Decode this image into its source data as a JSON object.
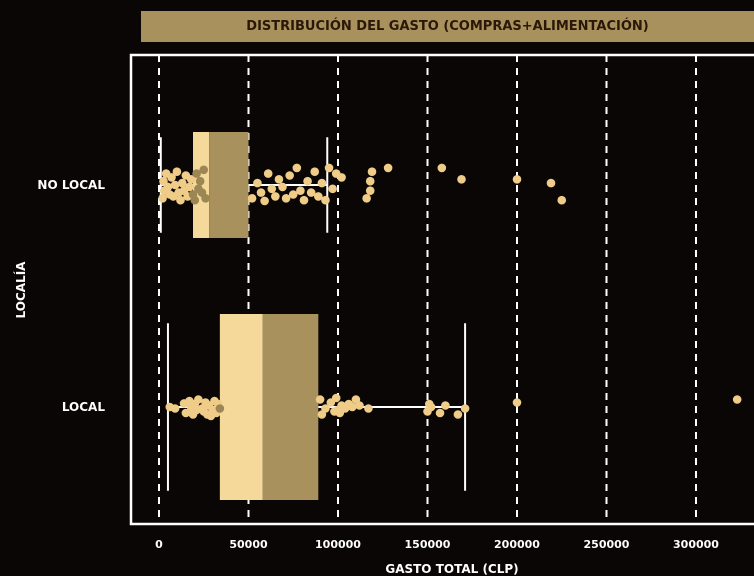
{
  "chart_data": {
    "type": "box",
    "title": "DISTRIBUCIÓN DEL GASTO (COMPRAS+ALIMENTACIÓN)",
    "xlabel": "GASTO TOTAL (CLP)",
    "ylabel": "LOCALÍA",
    "xlim": [
      -15000,
      335000
    ],
    "xticks": [
      0,
      50000,
      100000,
      150000,
      200000,
      250000,
      300000
    ],
    "xtick_labels": [
      "0",
      "50000",
      "100000",
      "150000",
      "200000",
      "250000",
      "300000"
    ],
    "grid": "vertical dashed",
    "categories": [
      "NO LOCAL",
      "LOCAL"
    ],
    "boxes": [
      {
        "category": "NO LOCAL",
        "whisker_low": 1000,
        "q1": 19000,
        "median": 28000,
        "q3": 50000,
        "whisker_high": 94000,
        "points": [
          [
            2000,
            0.35
          ],
          [
            2500,
            -0.1
          ],
          [
            3000,
            0.15
          ],
          [
            4000,
            -0.3
          ],
          [
            5000,
            0.05
          ],
          [
            6000,
            0.25
          ],
          [
            7000,
            -0.2
          ],
          [
            8000,
            0.3
          ],
          [
            9000,
            0.0
          ],
          [
            10000,
            -0.35
          ],
          [
            11000,
            0.2
          ],
          [
            12000,
            0.4
          ],
          [
            13000,
            -0.05
          ],
          [
            14000,
            0.15
          ],
          [
            15000,
            -0.25
          ],
          [
            16000,
            0.3
          ],
          [
            17000,
            0.05
          ],
          [
            18000,
            -0.15
          ],
          [
            19000,
            0.25
          ],
          [
            20000,
            0.4
          ],
          [
            21000,
            -0.3
          ],
          [
            22000,
            0.1
          ],
          [
            23000,
            -0.1
          ],
          [
            24000,
            0.2
          ],
          [
            25000,
            -0.4
          ],
          [
            26000,
            0.35
          ],
          [
            52000,
            0.35
          ],
          [
            55000,
            -0.05
          ],
          [
            57000,
            0.2
          ],
          [
            59000,
            0.42
          ],
          [
            61000,
            -0.3
          ],
          [
            63000,
            0.1
          ],
          [
            65000,
            0.3
          ],
          [
            67000,
            -0.15
          ],
          [
            69000,
            0.05
          ],
          [
            71000,
            0.35
          ],
          [
            73000,
            -0.25
          ],
          [
            75000,
            0.25
          ],
          [
            77000,
            -0.45
          ],
          [
            79000,
            0.15
          ],
          [
            81000,
            0.4
          ],
          [
            83000,
            -0.1
          ],
          [
            85000,
            0.2
          ],
          [
            87000,
            -0.35
          ],
          [
            89000,
            0.3
          ],
          [
            91000,
            -0.05
          ],
          [
            93000,
            0.4
          ],
          [
            95000,
            -0.45
          ],
          [
            97000,
            0.1
          ],
          [
            99000,
            -0.3
          ],
          [
            102000,
            -0.2
          ],
          [
            116000,
            0.35
          ],
          [
            118000,
            0.15
          ],
          [
            118000,
            -0.1
          ],
          [
            119000,
            -0.35
          ],
          [
            128000,
            -0.45
          ],
          [
            158000,
            -0.45
          ],
          [
            169000,
            -0.15
          ],
          [
            200000,
            -0.15
          ],
          [
            219000,
            -0.05
          ],
          [
            225000,
            0.4
          ]
        ]
      },
      {
        "category": "LOCAL",
        "whisker_low": 5000,
        "q1": 34000,
        "median": 58000,
        "q3": 89000,
        "whisker_high": 171000,
        "points": [
          [
            6000,
            0.0
          ],
          [
            9000,
            0.05
          ],
          [
            14000,
            -0.12
          ],
          [
            15000,
            0.2
          ],
          [
            17000,
            -0.2
          ],
          [
            18000,
            0.02
          ],
          [
            19000,
            0.25
          ],
          [
            20000,
            -0.1
          ],
          [
            21000,
            0.1
          ],
          [
            22000,
            -0.25
          ],
          [
            24000,
            0.05
          ],
          [
            25000,
            0.15
          ],
          [
            26000,
            -0.15
          ],
          [
            27000,
            0.25
          ],
          [
            28000,
            -0.05
          ],
          [
            29000,
            0.3
          ],
          [
            30000,
            0.1
          ],
          [
            31000,
            -0.2
          ],
          [
            32000,
            0.2
          ],
          [
            33000,
            -0.1
          ],
          [
            34000,
            0.05
          ],
          [
            90000,
            -0.25
          ],
          [
            91000,
            0.25
          ],
          [
            93000,
            0.05
          ],
          [
            96000,
            -0.15
          ],
          [
            98000,
            0.15
          ],
          [
            99000,
            -0.3
          ],
          [
            100000,
            0.1
          ],
          [
            101000,
            0.2
          ],
          [
            102000,
            -0.05
          ],
          [
            104000,
            0.05
          ],
          [
            106000,
            -0.1
          ],
          [
            108000,
            0.0
          ],
          [
            110000,
            -0.25
          ],
          [
            112000,
            -0.05
          ],
          [
            117000,
            0.05
          ],
          [
            150000,
            0.15
          ],
          [
            151000,
            -0.1
          ],
          [
            152000,
            0.0
          ],
          [
            157000,
            0.2
          ],
          [
            160000,
            -0.05
          ],
          [
            167000,
            0.25
          ],
          [
            171000,
            0.05
          ],
          [
            200000,
            -0.15
          ],
          [
            323000,
            -0.25
          ]
        ]
      }
    ]
  },
  "colors": {
    "background": "#0b0606",
    "box_left": "#f5d99a",
    "box_right": "#a8915c",
    "point": "#efcd88",
    "point_dark": "#9c8654",
    "line": "#ffffff"
  }
}
